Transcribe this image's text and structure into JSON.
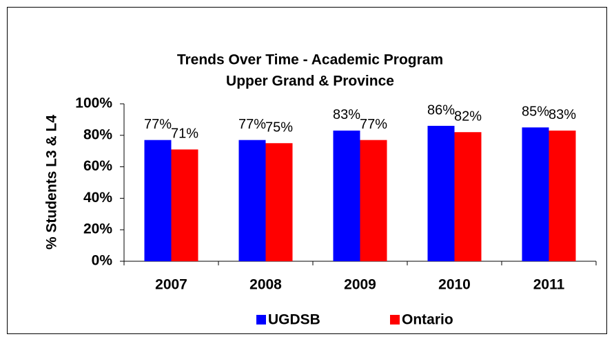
{
  "chart_data": {
    "type": "bar",
    "title": [
      "Trends Over Time - Academic Program",
      "Upper Grand & Province"
    ],
    "y_label": "% Students L3 & L4",
    "categories": [
      "2007",
      "2008",
      "2009",
      "2010",
      "2011"
    ],
    "series": [
      {
        "name": "UGDSB",
        "color": "#0000ff",
        "values": [
          77,
          77,
          83,
          86,
          85
        ],
        "value_labels": [
          "77%",
          "77%",
          "83%",
          "86%",
          "85%"
        ]
      },
      {
        "name": "Ontario",
        "color": "#ff0000",
        "values": [
          71,
          75,
          77,
          82,
          83
        ],
        "value_labels": [
          "71%",
          "75%",
          "77%",
          "82%",
          "83%"
        ]
      }
    ],
    "ylim": [
      0,
      100
    ],
    "yticks": [
      {
        "value": 0,
        "label": "0%"
      },
      {
        "value": 20,
        "label": "20%"
      },
      {
        "value": 40,
        "label": "40%"
      },
      {
        "value": 60,
        "label": "60%"
      },
      {
        "value": 80,
        "label": "80%"
      },
      {
        "value": 100,
        "label": "100%"
      }
    ],
    "legend": "bottom"
  }
}
